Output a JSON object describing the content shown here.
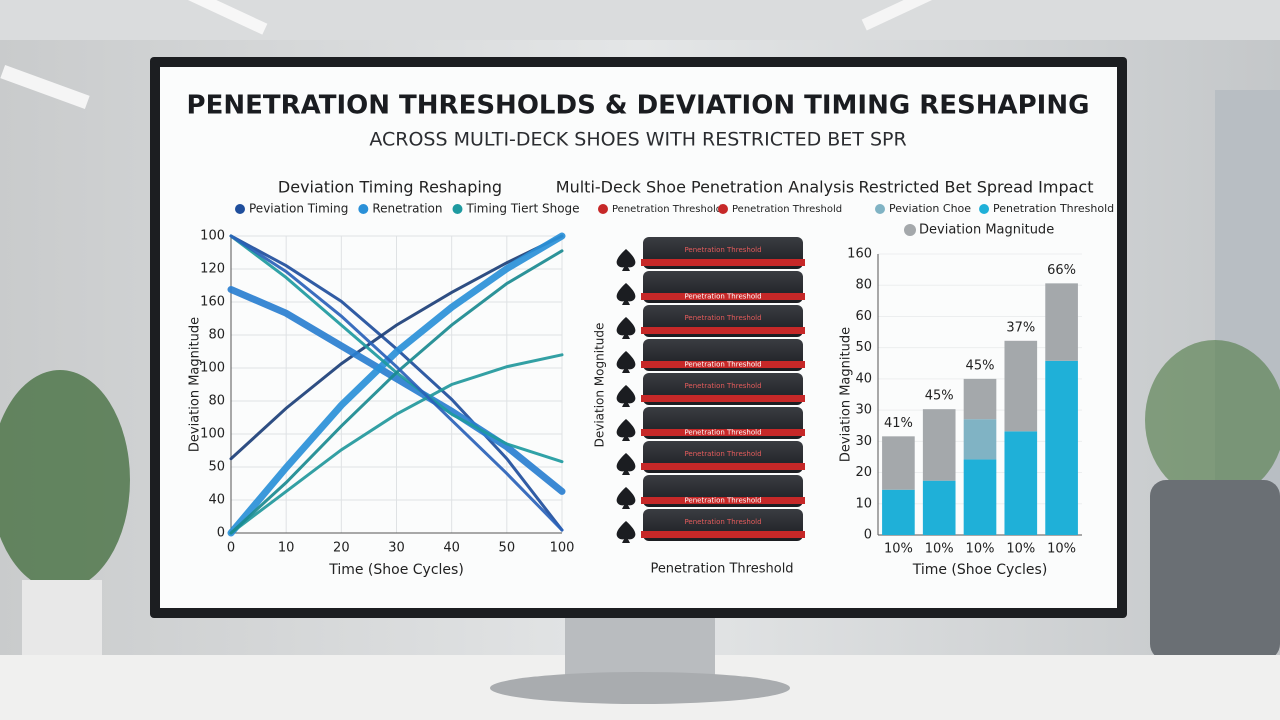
{
  "header": {
    "title": "PENETRATION THRESHOLDS & DEVIATION TIMING RESHAPING",
    "subtitle": "ACROSS MULTI-DECK SHOES WITH RESTRICTED BET SPR"
  },
  "chart_data": [
    {
      "type": "line",
      "title": "Deviation Timing Reshaping",
      "y_label": "Deviation Magnitude",
      "x_label": "Time (Shoe Cycles)",
      "categories": [
        "0",
        "10",
        "20",
        "30",
        "40",
        "50",
        "100"
      ],
      "y_axis_labels": [
        "100",
        "120",
        "160",
        "80",
        "100",
        "80",
        "100",
        "50",
        "40",
        "0"
      ],
      "ylim": [
        0,
        100
      ],
      "grid": true,
      "series": [
        {
          "name": "Peviation Timing",
          "color": "#1f4e9c",
          "line_width": 3,
          "values": [
            100,
            90,
            78,
            62,
            45,
            25,
            1
          ]
        },
        {
          "color": "#1c3f78",
          "line_width": 3,
          "values": [
            25,
            42,
            57,
            70,
            81,
            91,
            100
          ]
        },
        {
          "color": "#2a7fd0",
          "line_width": 7,
          "values": [
            82,
            74,
            63,
            52,
            41,
            29,
            14
          ]
        },
        {
          "name": "Renetration",
          "color": "#2a90d8",
          "line_width": 7,
          "values": [
            0,
            22,
            43,
            61,
            76,
            89,
            100
          ]
        },
        {
          "name": "Timing Tiert Shoge",
          "color": "#1e9aa0",
          "line_width": 3,
          "values": [
            100,
            86,
            70,
            54,
            40,
            30,
            24
          ]
        },
        {
          "color": "#22989c",
          "line_width": 3,
          "values": [
            0,
            14,
            28,
            40,
            50,
            56,
            60
          ]
        },
        {
          "color": "#1a8a90",
          "line_width": 3,
          "values": [
            0,
            17,
            36,
            54,
            70,
            84,
            95
          ]
        },
        {
          "color": "#2a62b8",
          "line_width": 3,
          "values": [
            100,
            88,
            73,
            56,
            38,
            20,
            1
          ]
        }
      ]
    },
    {
      "type": "bar",
      "title": "Restricted Bet Spread Impact",
      "y_label": "Deviation Magnitude",
      "x_label": "Time (Shoe Cycles)",
      "categories": [
        "10%",
        "10%",
        "10%",
        "10%",
        "10%"
      ],
      "annotations": [
        "41%",
        "45%",
        "45%",
        "37%",
        "66%"
      ],
      "y_axis_labels": [
        "160",
        "80",
        "60",
        "50",
        "40",
        "30",
        "30",
        "20",
        "10",
        "0"
      ],
      "ylim": [
        0,
        90
      ],
      "grid": true,
      "legend_order": [
        1,
        0,
        2
      ],
      "series": [
        {
          "name": "Penetration Threshold",
          "color": "#1fb0d8",
          "values": [
            14.5,
            17.4,
            24.2,
            33.2,
            55.8
          ]
        },
        {
          "name": "Peviation Choe",
          "color": "#80b3c4",
          "values": [
            null,
            null,
            12.9,
            null,
            null
          ]
        },
        {
          "name": "Deviation Magnitude",
          "color": "#a4a8ab",
          "values": [
            17.1,
            22.9,
            12.9,
            29,
            24.8
          ]
        }
      ]
    }
  ],
  "illustration": {
    "title": "Multi-Deck Shoe Penetration Analysis",
    "legend": [
      "Penetration Threshold",
      "Penetration Threshold"
    ],
    "slab_label": "Penetration Threshold",
    "y_label": "Deviation Mognitude",
    "x_label": "Penetration Threshold"
  }
}
